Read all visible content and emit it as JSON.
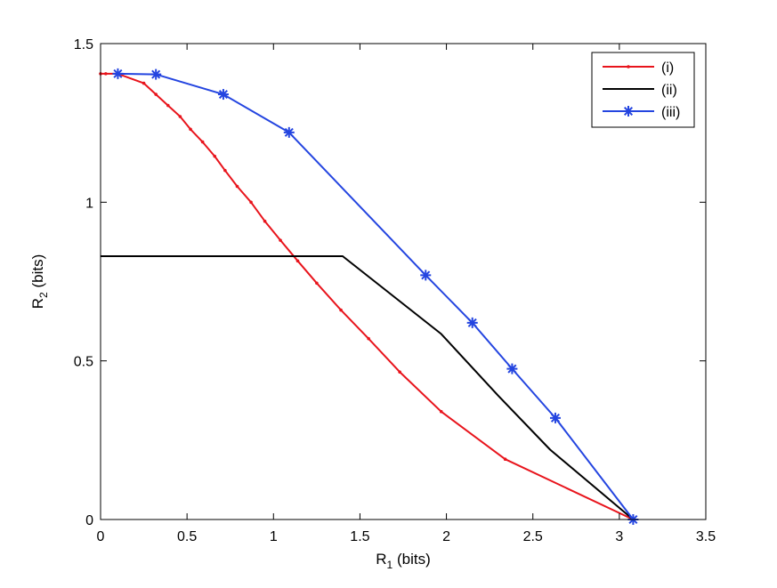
{
  "chart_data": {
    "type": "line",
    "xlabel_main": "R",
    "xlabel_sub": "1",
    "xlabel_tail": " (bits)",
    "ylabel_main": "R",
    "ylabel_sub": "2",
    "ylabel_tail": " (bits)",
    "xlim": [
      0,
      3.5
    ],
    "ylim": [
      0,
      1.5
    ],
    "x_ticks": [
      0,
      0.5,
      1,
      1.5,
      2,
      2.5,
      3,
      3.5
    ],
    "x_tick_labels": [
      "0",
      "0.5",
      "1",
      "1.5",
      "2",
      "2.5",
      "3",
      "3.5"
    ],
    "y_ticks": [
      0,
      0.5,
      1,
      1.5
    ],
    "y_tick_labels": [
      "0",
      "0.5",
      "1",
      "1.5"
    ],
    "grid": false,
    "legend_position": "top-right",
    "series": [
      {
        "name": "(i)",
        "color": "#e8141c",
        "marker": "dot",
        "x": [
          0,
          0.03,
          0.1,
          0.25,
          0.32,
          0.39,
          0.46,
          0.52,
          0.59,
          0.66,
          0.72,
          0.79,
          0.87,
          0.95,
          1.04,
          1.14,
          1.25,
          1.39,
          1.55,
          1.73,
          1.97,
          2.34,
          3.08
        ],
        "y": [
          1.405,
          1.405,
          1.405,
          1.375,
          1.34,
          1.305,
          1.27,
          1.23,
          1.19,
          1.145,
          1.1,
          1.05,
          1.0,
          0.94,
          0.88,
          0.815,
          0.745,
          0.66,
          0.57,
          0.465,
          0.34,
          0.19,
          0.0
        ]
      },
      {
        "name": "(ii)",
        "color": "#000000",
        "marker": "none",
        "x": [
          0,
          1.4,
          1.97,
          2.3,
          2.6,
          3.08
        ],
        "y": [
          0.83,
          0.83,
          0.585,
          0.39,
          0.22,
          0.0
        ]
      },
      {
        "name": "(iii)",
        "color": "#2445e0",
        "marker": "star",
        "x": [
          0.1,
          0.32,
          0.71,
          1.09,
          1.88,
          2.15,
          2.38,
          2.63,
          3.08
        ],
        "y": [
          1.405,
          1.403,
          1.34,
          1.22,
          0.77,
          0.62,
          0.475,
          0.32,
          0.0
        ]
      }
    ]
  }
}
